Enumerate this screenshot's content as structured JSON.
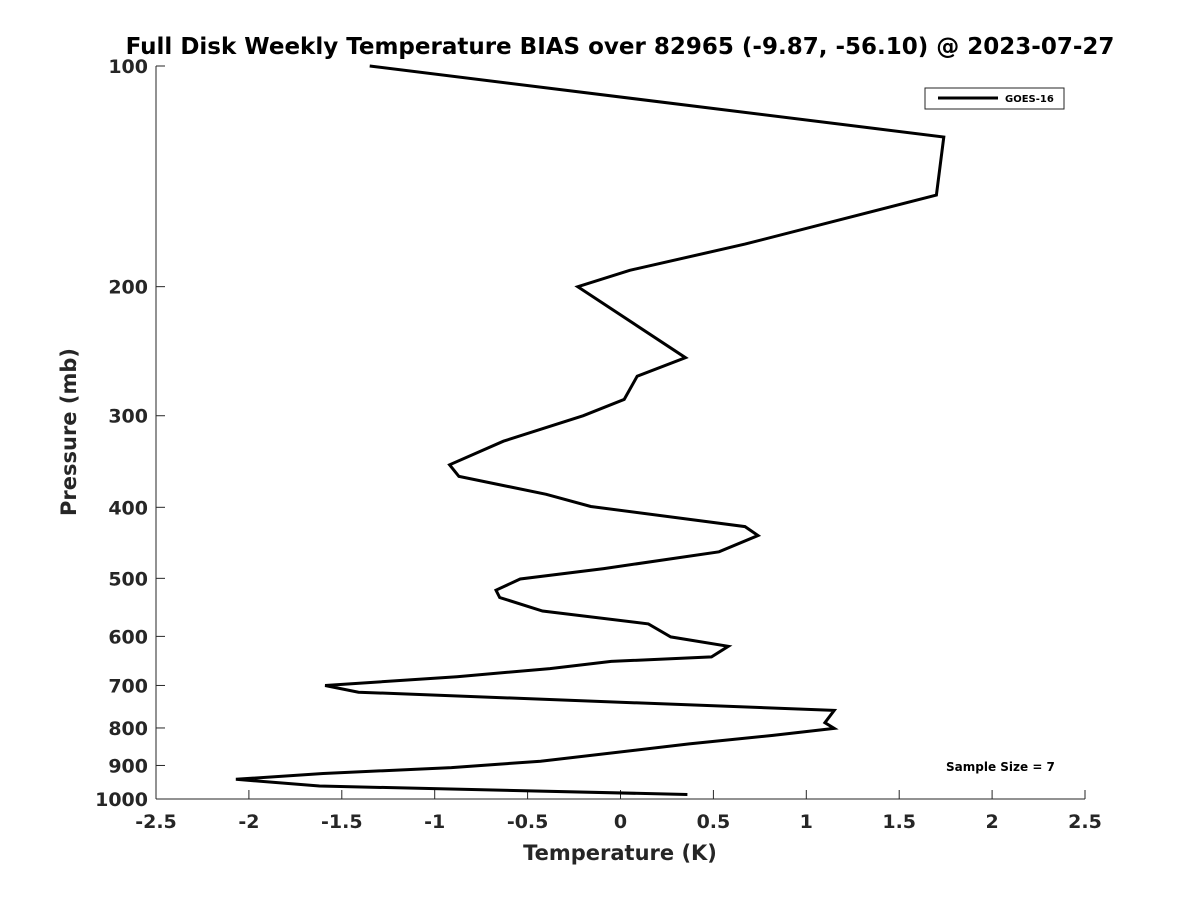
{
  "chart_data": {
    "type": "line",
    "title": "Full Disk Weekly Temperature BIAS over 82965 (-9.87, -56.10) @ 2023-07-27",
    "xlabel": "Temperature (K)",
    "ylabel": "Pressure (mb)",
    "xlim": [
      -2.5,
      2.5
    ],
    "ylim": [
      100,
      1000
    ],
    "y_scale": "log",
    "y_reversed": true,
    "x_ticks": [
      "-2.5",
      "-2",
      "-1.5",
      "-1",
      "-0.5",
      "0",
      "0.5",
      "1",
      "1.5",
      "2",
      "2.5"
    ],
    "y_ticks": [
      "100",
      "200",
      "300",
      "400",
      "500",
      "600",
      "700",
      "800",
      "900",
      "1000"
    ],
    "grid": false,
    "legend_position": "top-right",
    "colors": {
      "series": "#000000",
      "axis": "#262626"
    },
    "series": [
      {
        "name": "GOES-16",
        "points": [
          [
            -1.35,
            100
          ],
          [
            1.74,
            125
          ],
          [
            1.7,
            150
          ],
          [
            0.67,
            175
          ],
          [
            0.05,
            190
          ],
          [
            -0.23,
            200
          ],
          [
            0.35,
            250
          ],
          [
            0.09,
            265
          ],
          [
            0.02,
            285
          ],
          [
            -0.2,
            300
          ],
          [
            -0.63,
            325
          ],
          [
            -0.92,
            350
          ],
          [
            -0.87,
            363
          ],
          [
            -0.4,
            384
          ],
          [
            -0.16,
            399
          ],
          [
            0.67,
            425
          ],
          [
            0.74,
            437
          ],
          [
            0.53,
            460
          ],
          [
            -0.09,
            485
          ],
          [
            -0.54,
            501
          ],
          [
            -0.67,
            519
          ],
          [
            -0.65,
            531
          ],
          [
            -0.42,
            554
          ],
          [
            0.15,
            577
          ],
          [
            0.27,
            601
          ],
          [
            0.58,
            619
          ],
          [
            0.49,
            640
          ],
          [
            -0.05,
            649
          ],
          [
            -0.38,
            664
          ],
          [
            -0.88,
            681
          ],
          [
            -1.59,
            700
          ],
          [
            -1.41,
            715
          ],
          [
            1.15,
            757
          ],
          [
            1.1,
            787
          ],
          [
            1.15,
            801
          ],
          [
            0.82,
            819
          ],
          [
            0.37,
            841
          ],
          [
            -0.43,
            888
          ],
          [
            -0.91,
            906
          ],
          [
            -1.6,
            923
          ],
          [
            -2.07,
            940
          ],
          [
            -1.62,
            960
          ],
          [
            0.36,
            986
          ]
        ]
      }
    ],
    "annotations": [
      "Sample Size = 7"
    ]
  }
}
